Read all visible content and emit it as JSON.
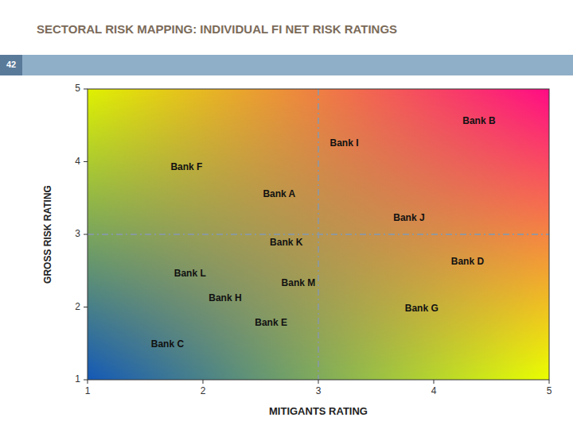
{
  "chart_data": {
    "type": "scatter",
    "title": "SECTORAL RISK MAPPING: INDIVIDUAL FI NET RISK RATINGS",
    "slide_number": "42",
    "x_label": "MITIGANTS RATING",
    "y_label": "GROSS RISK RATING",
    "xlim": [
      1,
      5
    ],
    "ylim": [
      1,
      5
    ],
    "xticks": [
      1,
      2,
      3,
      4,
      5
    ],
    "yticks": [
      1,
      2,
      3,
      4,
      5
    ],
    "reference_lines": {
      "x": 3.0,
      "y": 3.0
    },
    "annotations": [
      {
        "text": "Bank B",
        "x": 4.25,
        "y": 4.55
      },
      {
        "text": "Bank I",
        "x": 3.1,
        "y": 4.25
      },
      {
        "text": "Bank F",
        "x": 1.72,
        "y": 3.92
      },
      {
        "text": "Bank A",
        "x": 2.52,
        "y": 3.55
      },
      {
        "text": "Bank J",
        "x": 3.65,
        "y": 3.22
      },
      {
        "text": "Bank K",
        "x": 2.58,
        "y": 2.88
      },
      {
        "text": "Bank D",
        "x": 4.15,
        "y": 2.62
      },
      {
        "text": "Bank L",
        "x": 1.75,
        "y": 2.45
      },
      {
        "text": "Bank M",
        "x": 2.68,
        "y": 2.32
      },
      {
        "text": "Bank H",
        "x": 2.05,
        "y": 2.12
      },
      {
        "text": "Bank G",
        "x": 3.75,
        "y": 1.98
      },
      {
        "text": "Bank E",
        "x": 2.45,
        "y": 1.78
      },
      {
        "text": "Bank C",
        "x": 1.55,
        "y": 1.48
      }
    ],
    "grid": false
  }
}
